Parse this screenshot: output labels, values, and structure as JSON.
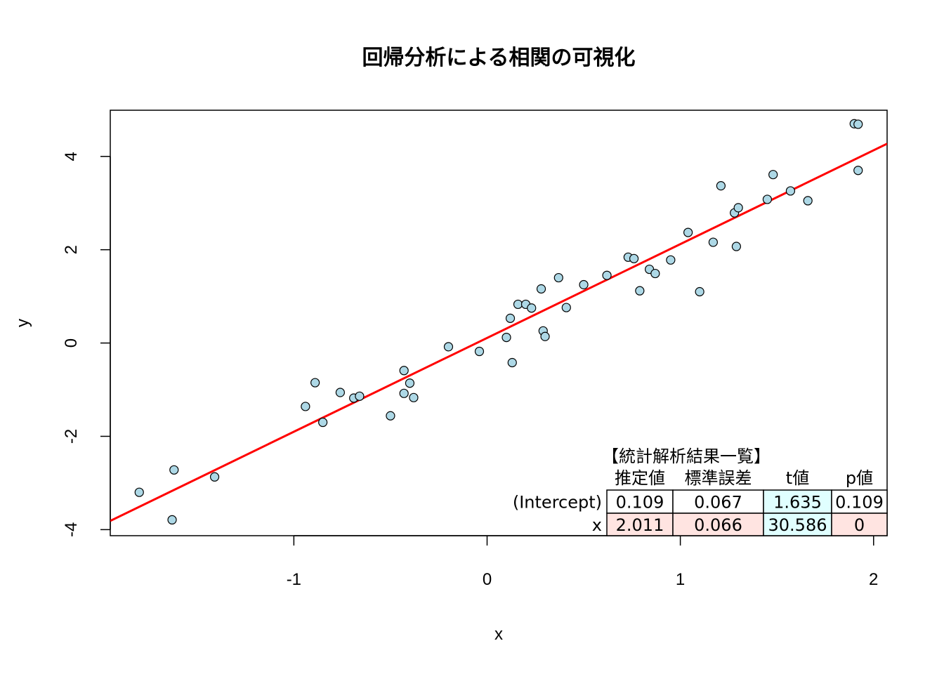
{
  "chart_data": {
    "type": "scatter",
    "title": "回帰分析による相関の可視化",
    "xlabel": "x",
    "ylabel": "y",
    "xlim": [
      -1.95,
      2.07
    ],
    "ylim": [
      -4.13,
      4.99
    ],
    "x_ticks": [
      -1,
      0,
      1,
      2
    ],
    "y_ticks": [
      -4,
      -2,
      0,
      2,
      4
    ],
    "grid": false,
    "point_color": "#add8e6",
    "point_edge_color": "#000000",
    "line_color": "#ff0000",
    "regression_line": {
      "intercept": 0.109,
      "slope": 2.011
    },
    "points": [
      {
        "x": -1.8,
        "y": -3.2
      },
      {
        "x": -1.63,
        "y": -3.79
      },
      {
        "x": -1.62,
        "y": -2.72
      },
      {
        "x": -1.41,
        "y": -2.87
      },
      {
        "x": -0.94,
        "y": -1.36
      },
      {
        "x": -0.89,
        "y": -0.85
      },
      {
        "x": -0.85,
        "y": -1.7
      },
      {
        "x": -0.76,
        "y": -1.06
      },
      {
        "x": -0.69,
        "y": -1.18
      },
      {
        "x": -0.66,
        "y": -1.14
      },
      {
        "x": -0.5,
        "y": -1.56
      },
      {
        "x": -0.43,
        "y": -0.59
      },
      {
        "x": -0.43,
        "y": -1.08
      },
      {
        "x": -0.4,
        "y": -0.86
      },
      {
        "x": -0.38,
        "y": -1.17
      },
      {
        "x": -0.2,
        "y": -0.08
      },
      {
        "x": -0.04,
        "y": -0.18
      },
      {
        "x": 0.1,
        "y": 0.12
      },
      {
        "x": 0.12,
        "y": 0.53
      },
      {
        "x": 0.13,
        "y": -0.42
      },
      {
        "x": 0.16,
        "y": 0.83
      },
      {
        "x": 0.2,
        "y": 0.83
      },
      {
        "x": 0.23,
        "y": 0.75
      },
      {
        "x": 0.28,
        "y": 1.16
      },
      {
        "x": 0.29,
        "y": 0.26
      },
      {
        "x": 0.3,
        "y": 0.14
      },
      {
        "x": 0.37,
        "y": 1.4
      },
      {
        "x": 0.41,
        "y": 0.76
      },
      {
        "x": 0.5,
        "y": 1.25
      },
      {
        "x": 0.62,
        "y": 1.45
      },
      {
        "x": 0.73,
        "y": 1.84
      },
      {
        "x": 0.76,
        "y": 1.81
      },
      {
        "x": 0.79,
        "y": 1.12
      },
      {
        "x": 0.84,
        "y": 1.58
      },
      {
        "x": 0.87,
        "y": 1.49
      },
      {
        "x": 0.95,
        "y": 1.78
      },
      {
        "x": 1.04,
        "y": 2.37
      },
      {
        "x": 1.1,
        "y": 1.1
      },
      {
        "x": 1.17,
        "y": 2.16
      },
      {
        "x": 1.21,
        "y": 3.37
      },
      {
        "x": 1.28,
        "y": 2.79
      },
      {
        "x": 1.29,
        "y": 2.07
      },
      {
        "x": 1.3,
        "y": 2.9
      },
      {
        "x": 1.45,
        "y": 3.08
      },
      {
        "x": 1.48,
        "y": 3.61
      },
      {
        "x": 1.57,
        "y": 3.26
      },
      {
        "x": 1.66,
        "y": 3.05
      },
      {
        "x": 1.9,
        "y": 4.7
      },
      {
        "x": 1.92,
        "y": 3.7
      },
      {
        "x": 1.92,
        "y": 4.69
      }
    ],
    "stats_table": {
      "caption": "【統計解析結果一覧】",
      "columns": [
        "推定値",
        "標準誤差",
        "t値",
        "p値"
      ],
      "rows": [
        {
          "name": "(Intercept)",
          "values": [
            "0.109",
            "0.067",
            "1.635",
            "0.109"
          ],
          "colors": [
            "#ffffff",
            "#ffffff",
            "#e0ffff",
            "#ffffff"
          ]
        },
        {
          "name": "x",
          "values": [
            "2.011",
            "0.066",
            "30.586",
            "0"
          ],
          "colors": [
            "#ffe4e1",
            "#ffe4e1",
            "#e0ffff",
            "#ffe4e1"
          ]
        }
      ]
    }
  }
}
